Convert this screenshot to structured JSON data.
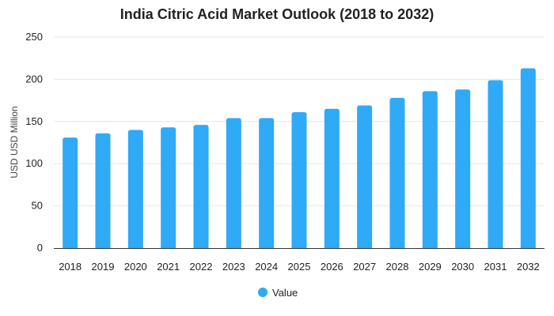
{
  "chart_data": {
    "type": "bar",
    "title": "India Citric Acid Market Outlook (2018 to 2032)",
    "xlabel": "",
    "ylabel": "USD USD Million",
    "categories": [
      "2018",
      "2019",
      "2020",
      "2021",
      "2022",
      "2023",
      "2024",
      "2025",
      "2026",
      "2027",
      "2028",
      "2029",
      "2030",
      "2031",
      "2032"
    ],
    "series": [
      {
        "name": "Value",
        "values": [
          131,
          136,
          140,
          143,
          146,
          154,
          154,
          161,
          165,
          169,
          178,
          186,
          188,
          199,
          213
        ],
        "color": "#2eaaf7"
      }
    ],
    "ylim": [
      0,
      250
    ],
    "yticks": [
      0,
      50,
      100,
      150,
      200,
      250
    ],
    "grid": true,
    "legend_position": "bottom"
  },
  "colors": {
    "bar": "#2eaaf7",
    "grid": "#e6e6e6",
    "axis": "#333333"
  }
}
